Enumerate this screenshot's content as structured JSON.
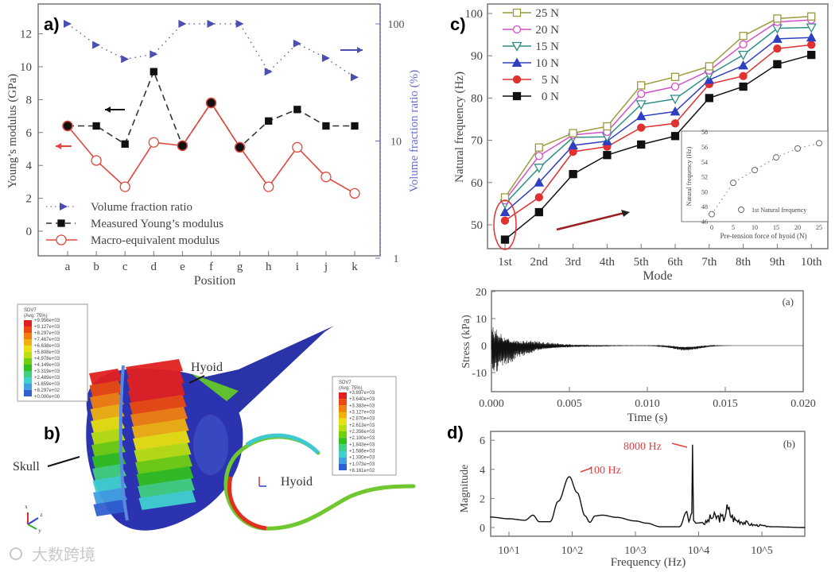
{
  "panel_labels": {
    "a": "a)",
    "b": "b)",
    "c": "c)",
    "d": "d)"
  },
  "watermark": "大数跨境",
  "chart_data": [
    {
      "id": "a",
      "type": "line",
      "xlabel": "Position",
      "ylabel": "Young’s modulus (GPa)",
      "y2label": "Volume fraction ratio (%)",
      "categories": [
        "a",
        "b",
        "c",
        "d",
        "e",
        "f",
        "g",
        "h",
        "i",
        "j",
        "k"
      ],
      "yticks": [
        0,
        2,
        4,
        6,
        8,
        10,
        12
      ],
      "ylim": [
        -1.3,
        13.3
      ],
      "y2ticks": [
        "1",
        "10",
        "100"
      ],
      "y2lim": [
        1,
        130
      ],
      "y2scale": "log",
      "legend_position": "bottom-left",
      "series": [
        {
          "name": "Volume fraction ratio",
          "axis": "right",
          "color": "#4a4fb0",
          "values": [
            100,
            66,
            50,
            55,
            100,
            100,
            100,
            39,
            68,
            51,
            35
          ]
        },
        {
          "name": "Measured Young’s modulus",
          "axis": "left",
          "color": "#111111",
          "values": [
            6.4,
            6.4,
            5.3,
            9.7,
            5.2,
            7.8,
            5.1,
            6.7,
            7.4,
            6.4,
            6.4
          ]
        },
        {
          "name": "Macro-equivalent modulus",
          "axis": "left",
          "color": "#e0483f",
          "values": [
            6.4,
            4.3,
            2.7,
            5.4,
            5.2,
            7.8,
            5.1,
            2.7,
            5.1,
            3.3,
            2.3
          ]
        }
      ]
    },
    {
      "id": "c",
      "type": "line",
      "xlabel": "Mode",
      "ylabel": "Natural frequency (Hz)",
      "categories": [
        "1st",
        "2nd",
        "3rd",
        "4th",
        "5th",
        "6th",
        "7th",
        "8th",
        "9th",
        "10th"
      ],
      "yticks": [
        50,
        60,
        70,
        80,
        90,
        100
      ],
      "ylim": [
        44.5,
        102
      ],
      "legend_position": "top-left",
      "series": [
        {
          "name": "25 N",
          "color": "#9c9a3a",
          "marker": "square-open",
          "values": [
            56.5,
            68.3,
            71.7,
            73.3,
            83,
            85,
            87.5,
            94.7,
            98.8,
            99.3
          ]
        },
        {
          "name": "20 N",
          "color": "#d24fc9",
          "marker": "circle-open",
          "values": [
            55.8,
            66.3,
            71.3,
            72,
            81,
            82.7,
            86.5,
            92.7,
            98,
            98.5
          ]
        },
        {
          "name": "15 N",
          "color": "#2f8f86",
          "marker": "triangle-down-open",
          "values": [
            55,
            63.5,
            70.7,
            70.8,
            78.5,
            79.8,
            85.5,
            90.2,
            96.5,
            96.7
          ]
        },
        {
          "name": "10 N",
          "color": "#2f3fc0",
          "marker": "triangle-up",
          "values": [
            53,
            60,
            68.8,
            69.8,
            75.7,
            76.8,
            84.3,
            87.7,
            94,
            94.3
          ]
        },
        {
          "name": "5 N",
          "color": "#e03030",
          "marker": "circle",
          "values": [
            51,
            56.5,
            67.3,
            68.5,
            73,
            74,
            83.3,
            85.2,
            91.7,
            92.6
          ]
        },
        {
          "name": "0 N",
          "color": "#111111",
          "marker": "square",
          "values": [
            46.5,
            53,
            62,
            66.5,
            69,
            71,
            80,
            82.7,
            88,
            90.2
          ]
        }
      ],
      "inset": {
        "type": "scatter",
        "xlabel": "Pre-tension force of hyoid (N)",
        "ylabel": "Natural frequency (Hz)",
        "legend": "1st Natural frequency",
        "x": [
          0,
          5,
          10,
          15,
          20,
          25
        ],
        "y": [
          47,
          51.2,
          52.9,
          54.6,
          55.8,
          56.5
        ],
        "xticks": [
          0,
          5,
          10,
          15,
          20,
          25
        ],
        "yticks": [
          46,
          48,
          50,
          52,
          54,
          56,
          58
        ],
        "xlim": [
          -2,
          26.5
        ],
        "ylim": [
          46,
          58
        ]
      }
    },
    {
      "id": "d-top",
      "type": "line",
      "tag": "(a)",
      "xlabel": "Time (s)",
      "ylabel": "Stress (kPa)",
      "xticks": [
        "0.000",
        "0.005",
        "0.010",
        "0.015",
        "0.020"
      ],
      "xlim": [
        0,
        0.02
      ],
      "yticks": [
        -10,
        0,
        10,
        20
      ],
      "ylim": [
        -17,
        20
      ],
      "description_series": "damped oscillation, peak amplitude about ±12 kPa near t=0.001 s, decaying to ≈0 by 0.006 s"
    },
    {
      "id": "d-bottom",
      "type": "line",
      "tag": "(b)",
      "xlabel": "Frequency (Hz)",
      "ylabel": "Magnitude",
      "xscale": "log",
      "xticks": [
        "10^1",
        "10^2",
        "10^3",
        "10^4",
        "10^5"
      ],
      "xlim": [
        5,
        480000
      ],
      "yticks": [
        0,
        2,
        4,
        6
      ],
      "ylim": [
        -0.5,
        6.5
      ],
      "annotations": [
        {
          "text": "100 Hz",
          "x": 100,
          "y": 3.5
        },
        {
          "text": "8000 Hz",
          "x": 8000,
          "y": 5.7
        }
      ],
      "x": [
        5,
        10,
        18,
        24,
        30,
        45,
        60,
        90,
        120,
        160,
        190,
        230,
        300,
        500,
        1000,
        1500,
        2500,
        5000,
        6500,
        7000,
        7800,
        8000,
        8300,
        9000,
        12000,
        17000,
        25000,
        27000,
        40000,
        80000,
        150000,
        480000
      ],
      "y": [
        0.72,
        0.6,
        0.5,
        0.85,
        0.4,
        0.4,
        1.8,
        3.5,
        2.4,
        0.8,
        0.35,
        0.8,
        0.85,
        0.7,
        0.45,
        0.3,
        0.05,
        0.05,
        1.1,
        0.4,
        1.0,
        5.7,
        0.5,
        0.3,
        0.35,
        0.9,
        0.8,
        1.5,
        0.6,
        0.2,
        0.05,
        0.0
      ]
    }
  ],
  "panel_b": {
    "skull_label": "Skull",
    "hyoid_label_top": "Hyoid",
    "hyoid_label_side": "Hyoid",
    "legend_left": {
      "title": "SDV7",
      "subtitle": "(Avg: 75%)",
      "values": [
        "+9.956e+03",
        "+9.127e+03",
        "+8.297e+03",
        "+7.467e+03",
        "+6.638e+03",
        "+5.808e+03",
        "+4.978e+03",
        "+4.149e+03",
        "+3.319e+03",
        "+2.489e+03",
        "+1.659e+03",
        "+8.297e+02",
        "+0.000e+00"
      ]
    },
    "legend_right": {
      "title": "SDV7",
      "subtitle": "(Avg: 75%)",
      "values": [
        "+3.897e+03",
        "+3.640e+03",
        "+3.383e+03",
        "+3.127e+03",
        "+2.870e+03",
        "+2.613e+03",
        "+2.356e+03",
        "+2.100e+03",
        "+1.843e+03",
        "+1.586e+03",
        "+1.330e+03",
        "+1.073e+03",
        "+8.161e+02"
      ]
    },
    "axis_triad_labels": [
      "x",
      "z",
      "y"
    ],
    "colormap": [
      "#e02020",
      "#ea4a10",
      "#f08010",
      "#f0b010",
      "#e8e010",
      "#b8e010",
      "#70d010",
      "#30c020",
      "#40d080",
      "#40d0d0",
      "#40a0e0",
      "#3060d0"
    ]
  }
}
